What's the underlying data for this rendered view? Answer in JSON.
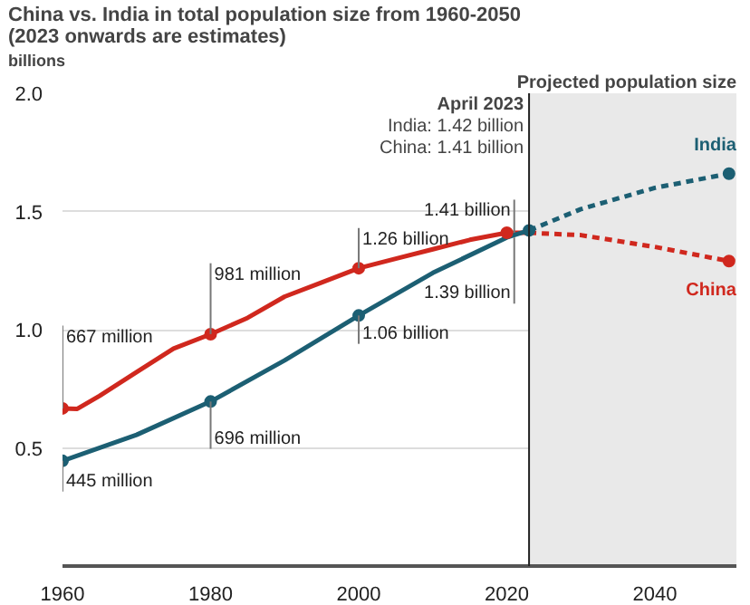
{
  "chart_data": {
    "type": "line",
    "title": "China vs. India in total population size from 1960-2050\n(2023 onwards are estimates)",
    "ylabel": "billions",
    "xlim": [
      1960,
      2051
    ],
    "xticks": [
      1960,
      1980,
      2000,
      2020,
      2040
    ],
    "ylim": [
      0,
      2.0
    ],
    "yticks": [
      {
        "value": 0.5,
        "label": "0.5"
      },
      {
        "value": 1.0,
        "label": "1.0"
      },
      {
        "value": 1.5,
        "label": "1.5"
      },
      {
        "value": 2.0,
        "label": "2.0"
      }
    ],
    "grid": "y",
    "legend": false,
    "marker": "none",
    "series": [
      {
        "color": "#d0281e",
        "line_style": "solid",
        "x": [
          1960,
          1962,
          1965,
          1970,
          1975,
          1980,
          1985,
          1990,
          1995,
          2000,
          2005,
          2010,
          2015,
          2020,
          2023
        ],
        "values": [
          0.667,
          0.665,
          0.72,
          0.82,
          0.92,
          0.981,
          1.05,
          1.14,
          1.2,
          1.26,
          1.3,
          1.34,
          1.38,
          1.41,
          1.41
        ]
      },
      {
        "color": "#1c5f73",
        "line_style": "solid",
        "x": [
          1960,
          1970,
          1980,
          1990,
          2000,
          2010,
          2020,
          2023
        ],
        "values": [
          0.445,
          0.555,
          0.696,
          0.87,
          1.06,
          1.24,
          1.39,
          1.42
        ]
      },
      {
        "name": "India",
        "color": "#1c5f73",
        "line_style": "dashed",
        "x": [
          2023,
          2030,
          2040,
          2050
        ],
        "values": [
          1.42,
          1.51,
          1.6,
          1.66
        ]
      },
      {
        "name": "China",
        "color": "#d0281e",
        "line_style": "dashed",
        "x": [
          2023,
          2030,
          2040,
          2050
        ],
        "values": [
          1.41,
          1.4,
          1.35,
          1.29
        ]
      },
      {
        "type": "scatter",
        "marker": "circle",
        "color": "#d0281e",
        "x": [
          1960,
          1980,
          2000,
          2020,
          2050
        ],
        "values": [
          0.667,
          0.981,
          1.26,
          1.41,
          1.29
        ]
      },
      {
        "type": "scatter",
        "marker": "circle",
        "color": "#1c5f73",
        "x": [
          1960,
          1980,
          2000,
          2023,
          2050
        ],
        "values": [
          0.445,
          0.696,
          1.06,
          1.42,
          1.66
        ]
      }
    ],
    "ref_lines": [
      {
        "axis": "x",
        "value": 2023,
        "label": "April 2023\nIndia: 1.42 billion\nChina: 1.41 billion",
        "color": "#222222"
      }
    ],
    "bands": [
      {
        "axis": "x",
        "from": 2023,
        "to": 2051,
        "label": "Projected population size",
        "color": "#e9e9e9"
      }
    ],
    "annotations": [
      {
        "text": "667 million",
        "x": 1960,
        "y": 0.667
      },
      {
        "text": "445 million",
        "x": 1960,
        "y": 0.445
      },
      {
        "text": "981 million",
        "x": 1980,
        "y": 0.981
      },
      {
        "text": "696 million",
        "x": 1980,
        "y": 0.696
      },
      {
        "text": "1.26 billion",
        "x": 2000,
        "y": 1.26
      },
      {
        "text": "1.06 billion",
        "x": 2000,
        "y": 1.06
      },
      {
        "text": "1.41 billion",
        "x": 2020,
        "y": 1.41
      },
      {
        "text": "1.39 billion",
        "x": 2020,
        "y": 1.39
      }
    ]
  }
}
